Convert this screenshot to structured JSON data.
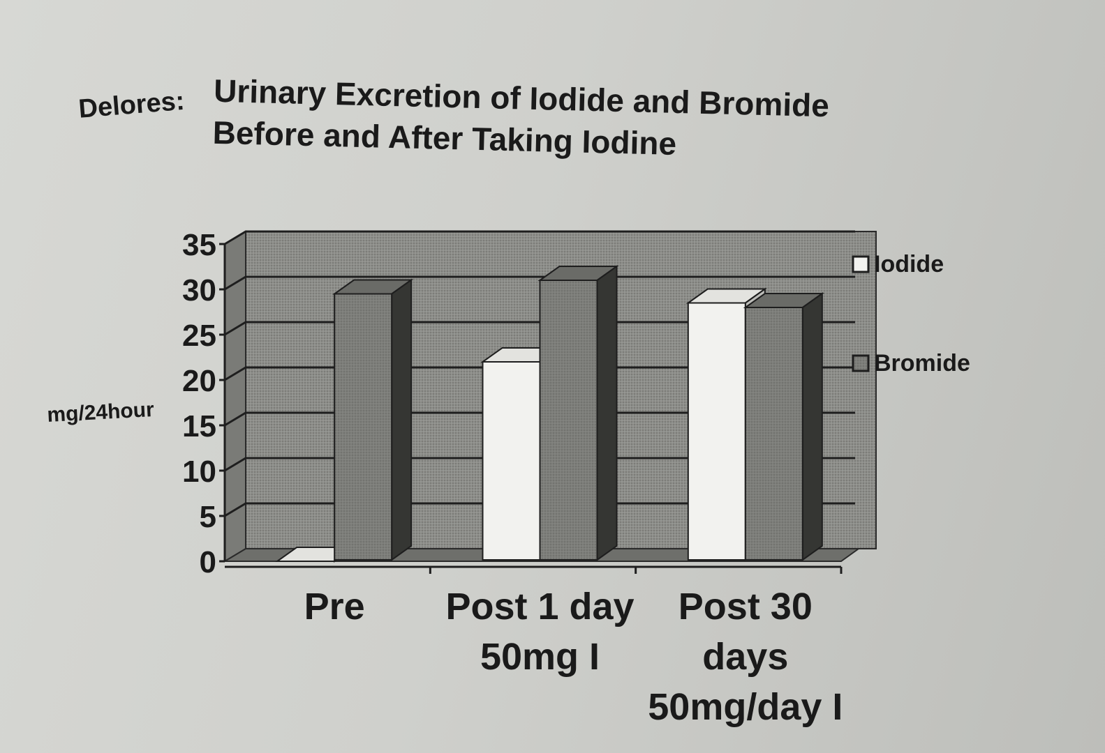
{
  "chart_data": {
    "type": "bar",
    "owner_label": "Delores:",
    "title_lines": [
      "Urinary Excretion of Iodide and Bromide",
      "Before and After Taking Iodine"
    ],
    "ylabel": "mg/24hour",
    "ylim": [
      0,
      35
    ],
    "yticks": [
      "0",
      "5",
      "10",
      "15",
      "20",
      "25",
      "30",
      "35"
    ],
    "categories": [
      [
        "Pre"
      ],
      [
        "Post 1 day",
        "50mg I"
      ],
      [
        "Post 30",
        "days",
        "50mg/day I"
      ]
    ],
    "series": [
      {
        "name": "Iodide",
        "values": [
          0,
          22,
          28.5
        ],
        "color": "#f2f2ef"
      },
      {
        "name": "Bromide",
        "values": [
          29.5,
          31,
          28
        ],
        "color": "#7d7e7a"
      }
    ],
    "grid": true,
    "legend_position": "right",
    "style": "3d-column"
  }
}
